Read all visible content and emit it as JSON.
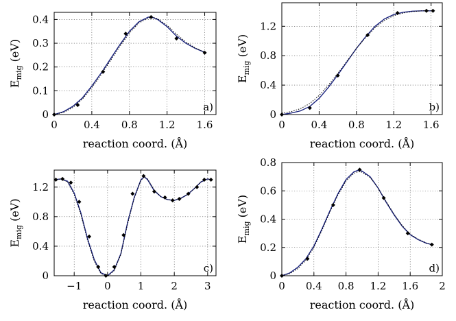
{
  "chart_data": [
    {
      "type": "line",
      "panel_label": "a)",
      "xlabel": "reaction coord. (Å)",
      "ylabel": "E",
      "ylabel_sub": "mig",
      "ylabel_unit": " (eV)",
      "xlim": [
        0,
        1.72
      ],
      "ylim": [
        0,
        0.43
      ],
      "xticks": [
        0,
        0.4,
        0.8,
        1.2,
        1.6
      ],
      "xtick_labels": [
        "0",
        "0.4",
        "0.8",
        "1.2",
        "1.6"
      ],
      "yticks": [
        0,
        0.1,
        0.2,
        0.3,
        0.4
      ],
      "ytick_labels": [
        "0",
        "0.1",
        "0.2",
        "0.3",
        "0.4"
      ],
      "grid": true,
      "series": [
        {
          "style": "markers",
          "x": [
            0,
            0.25,
            0.52,
            0.76,
            1.03,
            1.3,
            1.6
          ],
          "y": [
            0,
            0.04,
            0.18,
            0.34,
            0.41,
            0.32,
            0.26
          ]
        },
        {
          "style": "solid",
          "x": [
            0,
            0.1,
            0.2,
            0.3,
            0.4,
            0.5,
            0.6,
            0.7,
            0.8,
            0.9,
            1.0,
            1.05,
            1.1,
            1.2,
            1.3,
            1.4,
            1.5,
            1.6
          ],
          "y": [
            0,
            0.012,
            0.035,
            0.07,
            0.12,
            0.175,
            0.235,
            0.295,
            0.35,
            0.39,
            0.41,
            0.408,
            0.4,
            0.37,
            0.33,
            0.3,
            0.278,
            0.262
          ]
        },
        {
          "style": "dotted",
          "x": [
            0,
            0.1,
            0.2,
            0.3,
            0.4,
            0.5,
            0.6,
            0.7,
            0.8,
            0.9,
            1.0,
            1.05,
            1.1,
            1.2,
            1.3,
            1.4,
            1.5,
            1.6
          ],
          "y": [
            0,
            0.009,
            0.03,
            0.065,
            0.113,
            0.168,
            0.228,
            0.288,
            0.343,
            0.385,
            0.406,
            0.409,
            0.403,
            0.376,
            0.338,
            0.305,
            0.28,
            0.262
          ]
        }
      ]
    },
    {
      "type": "line",
      "panel_label": "b)",
      "xlabel": "reaction coord. (Å)",
      "ylabel": "E",
      "ylabel_sub": "mig",
      "ylabel_unit": " (eV)",
      "xlim": [
        0,
        1.72
      ],
      "ylim": [
        0,
        1.52
      ],
      "xticks": [
        0,
        0.4,
        0.8,
        1.2,
        1.6
      ],
      "xtick_labels": [
        "0",
        "0.4",
        "0.8",
        "1.2",
        "1.6"
      ],
      "yticks": [
        0,
        0.4,
        0.8,
        1.2
      ],
      "ytick_labels": [
        "0",
        "0.4",
        "0.8",
        "1.2"
      ],
      "grid": true,
      "series": [
        {
          "style": "markers",
          "x": [
            0,
            0.3,
            0.6,
            0.92,
            1.24,
            1.55,
            1.62
          ],
          "y": [
            0,
            0.09,
            0.53,
            1.08,
            1.38,
            1.41,
            1.41
          ]
        },
        {
          "style": "solid",
          "x": [
            0,
            0.1,
            0.2,
            0.3,
            0.4,
            0.5,
            0.6,
            0.7,
            0.8,
            0.9,
            1.0,
            1.1,
            1.2,
            1.3,
            1.4,
            1.5,
            1.6
          ],
          "y": [
            0,
            0.02,
            0.05,
            0.11,
            0.22,
            0.37,
            0.54,
            0.72,
            0.9,
            1.06,
            1.2,
            1.3,
            1.36,
            1.39,
            1.405,
            1.41,
            1.41
          ]
        },
        {
          "style": "dotted",
          "x": [
            0,
            0.1,
            0.2,
            0.3,
            0.4,
            0.5,
            0.6,
            0.7,
            0.8,
            0.9,
            1.0,
            1.1,
            1.2,
            1.3,
            1.4,
            1.5,
            1.6
          ],
          "y": [
            0.02,
            0.04,
            0.08,
            0.15,
            0.26,
            0.4,
            0.56,
            0.73,
            0.9,
            1.05,
            1.18,
            1.28,
            1.345,
            1.38,
            1.4,
            1.41,
            1.41
          ]
        }
      ]
    },
    {
      "type": "line",
      "panel_label": "c)",
      "xlabel": "reaction coord. (Å)",
      "ylabel": "E",
      "ylabel_sub": "mig",
      "ylabel_unit": " (eV)",
      "xlim": [
        -1.6,
        3.25
      ],
      "ylim": [
        0,
        1.43
      ],
      "xticks": [
        -1,
        0,
        1,
        2,
        3
      ],
      "xtick_labels": [
        "−1",
        "0",
        "1",
        "2",
        "3"
      ],
      "yticks": [
        0,
        0.4,
        0.8,
        1.2
      ],
      "ytick_labels": [
        "0",
        "0.4",
        "0.8",
        "1.2"
      ],
      "grid": true,
      "series": [
        {
          "style": "markers",
          "x": [
            -1.55,
            -1.35,
            -1.1,
            -0.85,
            -0.55,
            -0.28,
            -0.05,
            0.2,
            0.48,
            0.75,
            1.08,
            1.4,
            1.72,
            1.95,
            2.15,
            2.42,
            2.68,
            2.9,
            3.1
          ],
          "y": [
            1.3,
            1.31,
            1.26,
            1.0,
            0.53,
            0.12,
            0.0,
            0.12,
            0.55,
            1.11,
            1.35,
            1.14,
            1.06,
            1.02,
            1.04,
            1.11,
            1.2,
            1.3,
            1.3
          ]
        },
        {
          "style": "solid",
          "x": [
            -1.6,
            -1.4,
            -1.2,
            -1.0,
            -0.8,
            -0.6,
            -0.4,
            -0.2,
            0,
            0.2,
            0.4,
            0.6,
            0.8,
            1.0,
            1.1,
            1.2,
            1.4,
            1.6,
            1.8,
            2.0,
            2.2,
            2.4,
            2.6,
            2.8,
            3.0,
            3.1
          ],
          "y": [
            1.3,
            1.31,
            1.28,
            1.12,
            0.85,
            0.5,
            0.22,
            0.04,
            0.0,
            0.08,
            0.3,
            0.72,
            1.06,
            1.3,
            1.34,
            1.3,
            1.15,
            1.07,
            1.03,
            1.02,
            1.05,
            1.1,
            1.18,
            1.27,
            1.31,
            1.3
          ]
        },
        {
          "style": "dotted",
          "x": [
            -1.6,
            -1.4,
            -1.2,
            -1.0,
            -0.8,
            -0.6,
            -0.4,
            -0.2,
            0,
            0.2,
            0.4,
            0.6,
            0.8,
            1.0,
            1.1,
            1.2,
            1.4,
            1.6,
            1.8,
            2.0,
            2.2,
            2.4,
            2.6,
            2.8,
            3.0,
            3.1
          ],
          "y": [
            1.3,
            1.31,
            1.27,
            1.1,
            0.83,
            0.48,
            0.2,
            0.03,
            -0.01,
            0.07,
            0.29,
            0.7,
            1.05,
            1.29,
            1.335,
            1.31,
            1.16,
            1.07,
            1.03,
            1.02,
            1.05,
            1.1,
            1.18,
            1.27,
            1.31,
            1.3
          ]
        }
      ]
    },
    {
      "type": "line",
      "panel_label": "d)",
      "xlabel": "reaction coord. (Å)",
      "ylabel": "E",
      "ylabel_sub": "mig",
      "ylabel_unit": " (eV)",
      "xlim": [
        0,
        2.0
      ],
      "ylim": [
        0,
        0.8
      ],
      "xticks": [
        0,
        0.4,
        0.8,
        1.2,
        1.6,
        2.0
      ],
      "xtick_labels": [
        "0",
        "0.4",
        "0.8",
        "1.2",
        "1.6",
        "2"
      ],
      "yticks": [
        0,
        0.2,
        0.4,
        0.6,
        0.8
      ],
      "ytick_labels": [
        "0",
        "0.2",
        "0.4",
        "0.6",
        "0.8"
      ],
      "grid": true,
      "series": [
        {
          "style": "markers",
          "x": [
            0,
            0.32,
            0.64,
            0.97,
            1.27,
            1.57,
            1.87
          ],
          "y": [
            0,
            0.12,
            0.5,
            0.75,
            0.55,
            0.3,
            0.22
          ]
        },
        {
          "style": "solid",
          "x": [
            0,
            0.1,
            0.2,
            0.3,
            0.4,
            0.5,
            0.6,
            0.7,
            0.8,
            0.9,
            0.95,
            1.0,
            1.1,
            1.2,
            1.3,
            1.4,
            1.5,
            1.6,
            1.7,
            1.8,
            1.87
          ],
          "y": [
            0,
            0.02,
            0.06,
            0.12,
            0.21,
            0.33,
            0.46,
            0.58,
            0.68,
            0.735,
            0.745,
            0.74,
            0.7,
            0.62,
            0.52,
            0.43,
            0.35,
            0.29,
            0.255,
            0.23,
            0.22
          ]
        },
        {
          "style": "dotted",
          "x": [
            0,
            0.1,
            0.2,
            0.3,
            0.4,
            0.5,
            0.6,
            0.7,
            0.8,
            0.9,
            0.95,
            1.0,
            1.1,
            1.2,
            1.3,
            1.4,
            1.5,
            1.6,
            1.7,
            1.8,
            1.87
          ],
          "y": [
            0,
            0.015,
            0.05,
            0.11,
            0.2,
            0.32,
            0.45,
            0.57,
            0.67,
            0.725,
            0.735,
            0.732,
            0.695,
            0.62,
            0.525,
            0.435,
            0.355,
            0.295,
            0.258,
            0.232,
            0.22
          ]
        }
      ]
    }
  ]
}
